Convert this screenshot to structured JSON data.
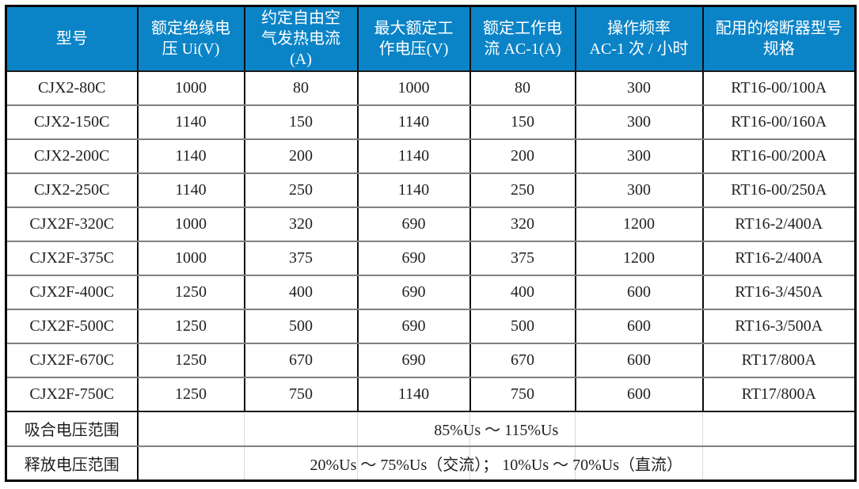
{
  "colors": {
    "header_bg": "#0b84c7",
    "header_text": "#ffffff",
    "body_text": "#1f1f1f",
    "border_dark": "#0d0d0d",
    "border_gray": "#7f7f7f"
  },
  "table": {
    "column_keys": [
      "model",
      "rated-insulation-voltage",
      "free-air-thermal-current",
      "max-rated-working-voltage",
      "rated-working-current-ac1",
      "operating-frequency",
      "fuse-spec"
    ],
    "headers": [
      "型号",
      "额定绝缘电\n压 Ui(V)",
      "约定自由空\n气发热电流\n(A)",
      "最大额定工\n作电压(V)",
      "额定工作电\n流 AC-1(A)",
      "操作频率\nAC-1 次 / 小时",
      "配用的熔断器型号\n规格"
    ],
    "rows": [
      [
        "CJX2-80C",
        "1000",
        "80",
        "1000",
        "80",
        "300",
        "RT16-00/100A"
      ],
      [
        "CJX2-150C",
        "1140",
        "150",
        "1140",
        "150",
        "300",
        "RT16-00/160A"
      ],
      [
        "CJX2-200C",
        "1140",
        "200",
        "1140",
        "200",
        "300",
        "RT16-00/200A"
      ],
      [
        "CJX2-250C",
        "1140",
        "250",
        "1140",
        "250",
        "300",
        "RT16-00/250A"
      ],
      [
        "CJX2F-320C",
        "1000",
        "320",
        "690",
        "320",
        "1200",
        "RT16-2/400A"
      ],
      [
        "CJX2F-375C",
        "1000",
        "375",
        "690",
        "375",
        "1200",
        "RT16-2/400A"
      ],
      [
        "CJX2F-400C",
        "1250",
        "400",
        "690",
        "400",
        "600",
        "RT16-3/450A"
      ],
      [
        "CJX2F-500C",
        "1250",
        "500",
        "690",
        "500",
        "600",
        "RT16-3/500A"
      ],
      [
        "CJX2F-670C",
        "1250",
        "670",
        "690",
        "670",
        "600",
        "RT17/800A"
      ],
      [
        "CJX2F-750C",
        "1250",
        "750",
        "1140",
        "750",
        "600",
        "RT17/800A"
      ]
    ],
    "footer_rows": [
      {
        "label": "吸合电压范围",
        "value": "85%Us ～ 115%Us"
      },
      {
        "label": "释放电压范围",
        "value": "20%Us ～ 75%Us（交流）； 10%Us ～ 70%Us（直流）"
      }
    ]
  },
  "chart_data": {
    "type": "table",
    "columns": [
      "型号",
      "额定绝缘电压 Ui(V)",
      "约定自由空气发热电流(A)",
      "最大额定工作电压(V)",
      "额定工作电流 AC-1(A)",
      "操作频率 AC-1 次 / 小时",
      "配用的熔断器型号规格"
    ],
    "rows": [
      [
        "CJX2-80C",
        1000,
        80,
        1000,
        80,
        300,
        "RT16-00/100A"
      ],
      [
        "CJX2-150C",
        1140,
        150,
        1140,
        150,
        300,
        "RT16-00/160A"
      ],
      [
        "CJX2-200C",
        1140,
        200,
        1140,
        200,
        300,
        "RT16-00/200A"
      ],
      [
        "CJX2-250C",
        1140,
        250,
        1140,
        250,
        300,
        "RT16-00/250A"
      ],
      [
        "CJX2F-320C",
        1000,
        320,
        690,
        320,
        1200,
        "RT16-2/400A"
      ],
      [
        "CJX2F-375C",
        1000,
        375,
        690,
        375,
        1200,
        "RT16-2/400A"
      ],
      [
        "CJX2F-400C",
        1250,
        400,
        690,
        400,
        600,
        "RT16-3/450A"
      ],
      [
        "CJX2F-500C",
        1250,
        500,
        690,
        500,
        600,
        "RT16-3/500A"
      ],
      [
        "CJX2F-670C",
        1250,
        670,
        690,
        670,
        600,
        "RT17/800A"
      ],
      [
        "CJX2F-750C",
        1250,
        750,
        1140,
        750,
        600,
        "RT17/800A"
      ],
      [
        "吸合电压范围",
        "85%Us ～ 115%Us",
        "",
        "",
        "",
        "",
        ""
      ],
      [
        "释放电压范围",
        "20%Us ～ 75%Us（交流）； 10%Us ～ 70%Us（直流）",
        "",
        "",
        "",
        "",
        ""
      ]
    ]
  }
}
